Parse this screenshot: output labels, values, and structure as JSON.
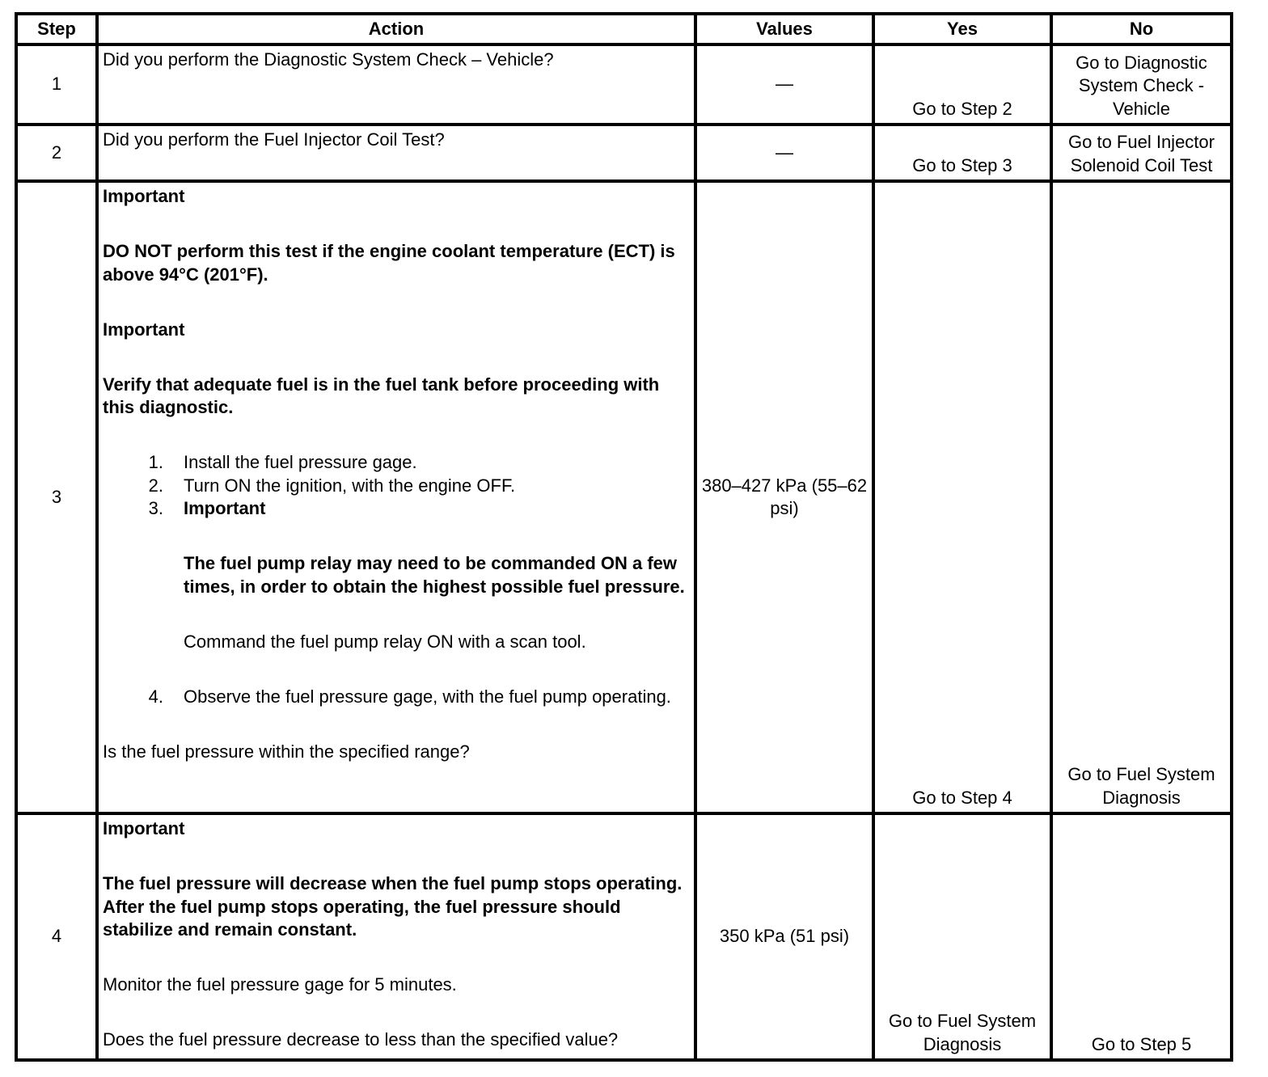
{
  "headers": [
    "Step",
    "Action",
    "Values",
    "Yes",
    "No"
  ],
  "rows": [
    {
      "step": "1",
      "question": "Did you perform the Diagnostic System Check – Vehicle?",
      "values": "—",
      "yes": "Go to Step 2",
      "no": "Go to Diagnostic System Check - Vehicle"
    },
    {
      "step": "2",
      "question": "Did you perform the Fuel Injector Coil Test?",
      "values": "—",
      "yes": "Go to Step 3",
      "no": "Go to Fuel Injector Solenoid Coil Test"
    },
    {
      "step": "3",
      "important1_label": "Important",
      "important1_text": "DO NOT perform this test if the engine coolant temperature (ECT) is above 94°C (201°F).",
      "important2_label": "Important",
      "important2_text": "Verify that adequate fuel is in the fuel tank before proceeding with this diagnostic.",
      "steps": [
        {
          "num": "1.",
          "text": "Install the fuel pressure gage."
        },
        {
          "num": "2.",
          "text": "Turn ON the ignition, with the engine OFF."
        },
        {
          "num": "3.",
          "label": "Important",
          "important_text": "The fuel pump relay may need to be commanded ON a few times, in order to obtain the highest possible fuel pressure.",
          "text": "Command the fuel pump relay ON with a scan tool."
        },
        {
          "num": "4.",
          "text": "Observe the fuel pressure gage, with the fuel pump operating."
        }
      ],
      "question": "Is the fuel pressure within the specified range?",
      "values": "380–427 kPa (55–62 psi)",
      "yes": "Go to Step 4",
      "no": "Go to Fuel System Diagnosis"
    },
    {
      "step": "4",
      "important_label": "Important",
      "important_text": "The fuel pressure will decrease when the fuel pump stops operating. After the fuel pump stops operating, the fuel pressure should stabilize and remain constant.",
      "instruction": "Monitor the fuel pressure gage for 5 minutes.",
      "question": "Does the fuel pressure decrease to less than the specified value?",
      "values": "350 kPa (51 psi)",
      "yes": "Go to Fuel System Diagnosis",
      "no": "Go to Step 5"
    }
  ]
}
